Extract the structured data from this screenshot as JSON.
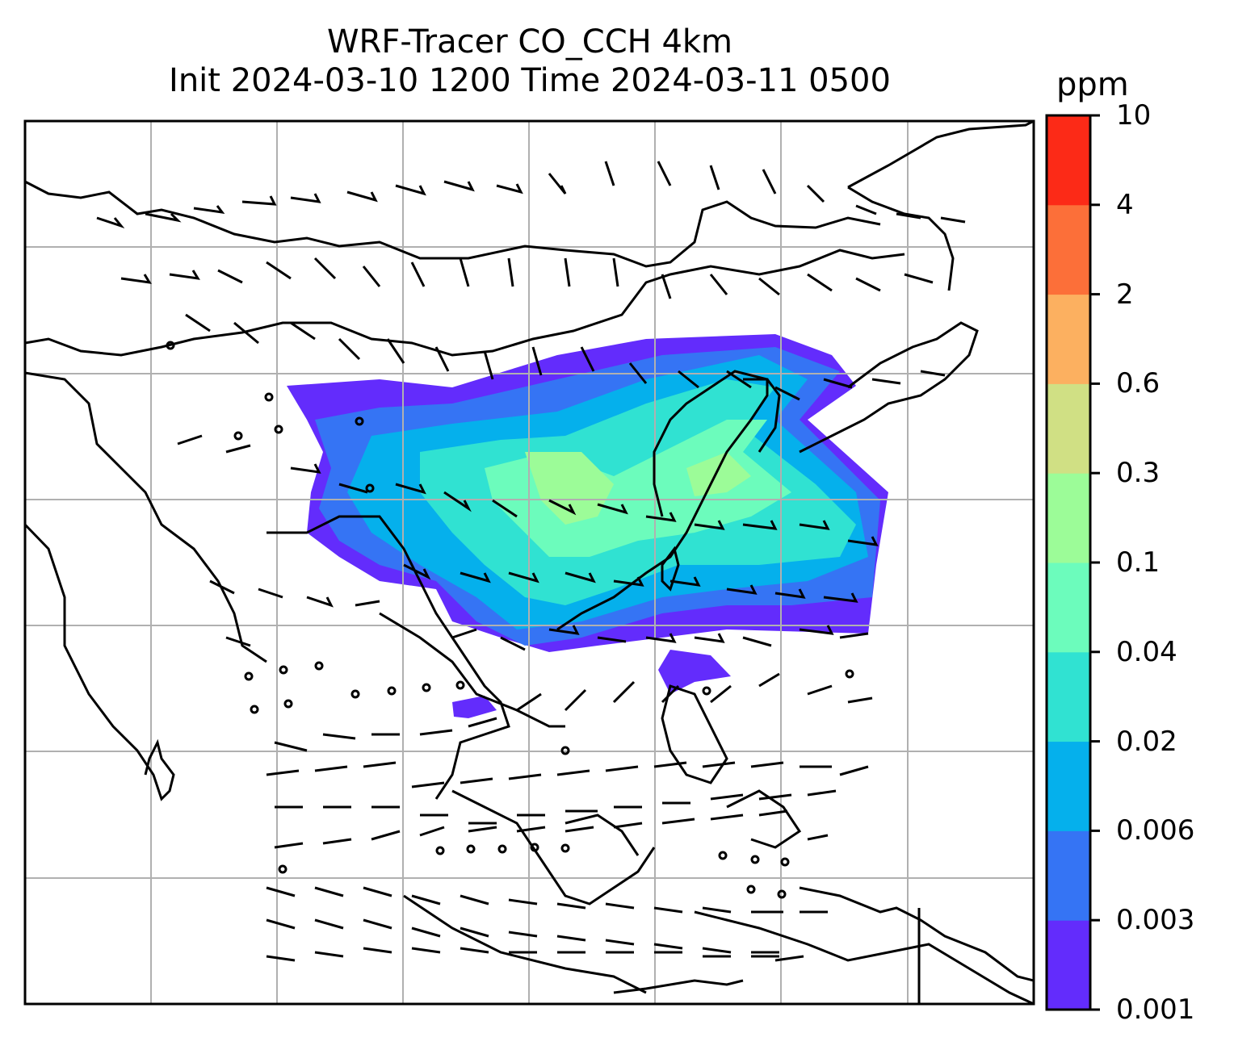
{
  "title": {
    "line1": "WRF-Tracer CO_CCH 4km",
    "line2": "Init 2024-03-10 1200 Time 2024-03-11 0500"
  },
  "colorbar": {
    "unit": "ppm",
    "levels": [
      "0.001",
      "0.003",
      "0.006",
      "0.02",
      "0.04",
      "0.1",
      "0.3",
      "0.6",
      "2",
      "4",
      "10"
    ],
    "colors": [
      "#632cfc",
      "#3574f4",
      "#05b0ec",
      "#30e2d2",
      "#6cfcbc",
      "#9cfc98",
      "#d0e084",
      "#fcb060",
      "#fc6f39",
      "#fc2a17"
    ]
  },
  "map": {
    "variable": "CO_CCH tracer",
    "overlay": "wind barbs",
    "gridlines": true,
    "coastline_color": "#000000"
  }
}
